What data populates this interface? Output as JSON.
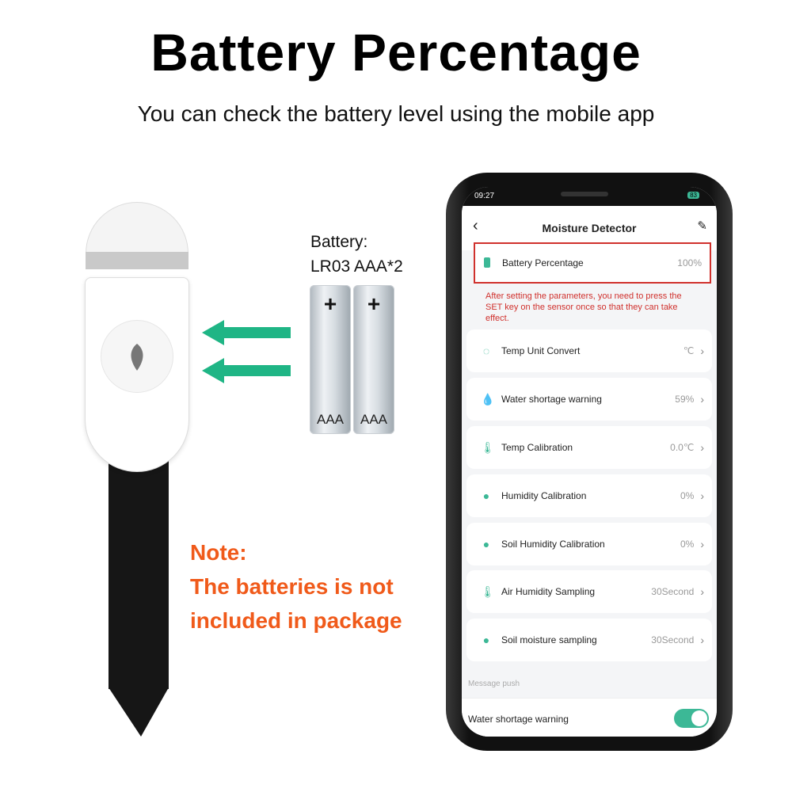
{
  "title": "Battery Percentage",
  "subtitle": "You can check the battery level using the mobile app",
  "battery_info": {
    "line1": "Battery:",
    "line2": "LR03 AAA*2",
    "cell_label": "AAA",
    "cell_plus": "+"
  },
  "note": {
    "line1": "Note:",
    "line2": "The batteries is not",
    "line3": "included in package"
  },
  "colors": {
    "accent": "#3cb896",
    "note": "#f05a1a",
    "warning": "#d0312d",
    "arrow": "#1fb585"
  },
  "app": {
    "status": {
      "time": "09:27",
      "battery": "83"
    },
    "header": {
      "title": "Moisture Detector",
      "back_icon": "chevron-left-icon",
      "edit_icon": "pencil-icon"
    },
    "battery_row": {
      "label": "Battery Percentage",
      "value": "100%"
    },
    "notice": "After setting the parameters, you need to press the SET key on the sensor once so that they can take effect.",
    "rows": [
      {
        "label": "Temp Unit Convert",
        "value": "℃",
        "icon": "circle-dots-icon"
      },
      {
        "label": "Water shortage warning",
        "value": "59%",
        "icon": "water-drop-icon"
      },
      {
        "label": "Temp Calibration",
        "value": "0.0℃",
        "icon": "thermometer-icon"
      },
      {
        "label": "Humidity Calibration",
        "value": "0%",
        "icon": "drops-icon"
      },
      {
        "label": "Soil Humidity Calibration",
        "value": "0%",
        "icon": "water-drop-icon"
      },
      {
        "label": "Air Humidity Sampling",
        "value": "30Second",
        "icon": "thermometer-icon"
      },
      {
        "label": "Soil moisture sampling",
        "value": "30Second",
        "icon": "water-drop-icon"
      }
    ],
    "section_label": "Message push",
    "toggle_row": {
      "label": "Water shortage warning",
      "on": true
    }
  }
}
